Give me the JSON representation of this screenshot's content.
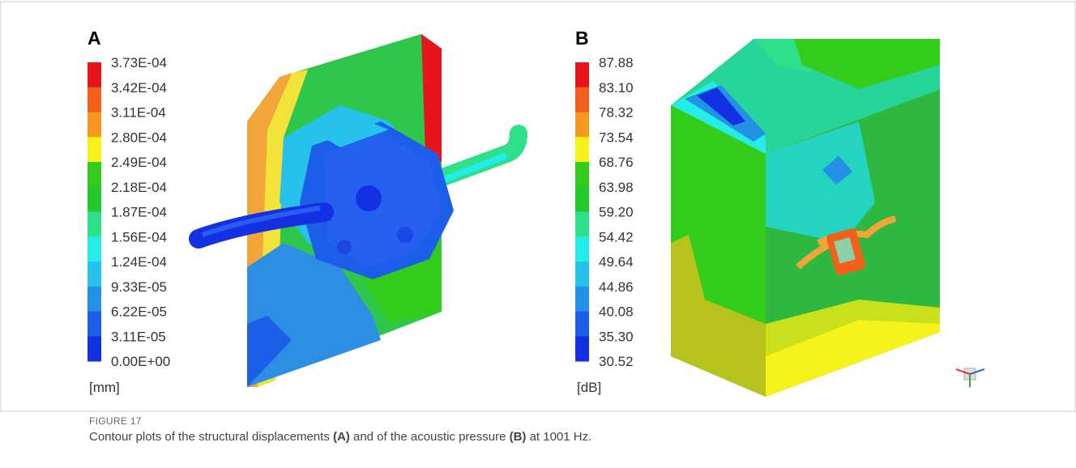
{
  "panels": [
    {
      "label": "A",
      "unit": "[mm]",
      "levels": [
        "3.73E-04",
        "3.42E-04",
        "3.11E-04",
        "2.80E-04",
        "2.49E-04",
        "2.18E-04",
        "1.87E-04",
        "1.56E-04",
        "1.24E-04",
        "9.33E-05",
        "6.22E-05",
        "3.11E-05",
        "0.00E+00"
      ]
    },
    {
      "label": "B",
      "unit": "[dB]",
      "levels": [
        "87.88",
        "83.10",
        "78.32",
        "73.54",
        "68.76",
        "63.98",
        "59.20",
        "54.42",
        "49.64",
        "44.86",
        "40.08",
        "35.30",
        "30.52"
      ]
    }
  ],
  "colorbar_colors": [
    "#e8141c",
    "#f2601c",
    "#f7981f",
    "#f6f21c",
    "#33cc1d",
    "#22c92b",
    "#2fe08a",
    "#24ece6",
    "#27c2ec",
    "#2392e6",
    "#1d5ee9",
    "#1430e3",
    "#0a0fe0"
  ],
  "caption": {
    "figure": "FIGURE 17",
    "parts": [
      "Contour plots of the structural displacements ",
      "(A)",
      " and of the acoustic pressure ",
      "(B)",
      " at 1001 Hz."
    ]
  }
}
